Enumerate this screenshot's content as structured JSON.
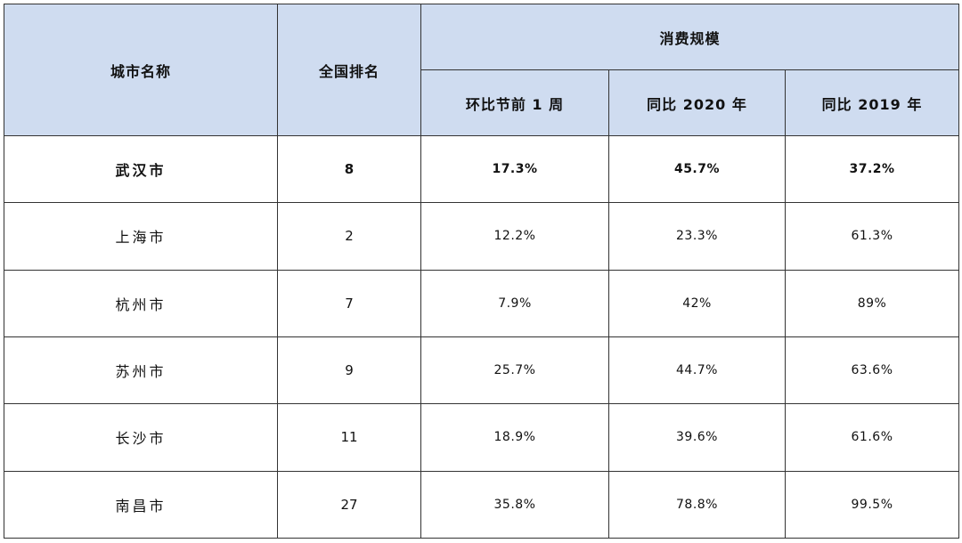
{
  "table": {
    "headers": {
      "city": "城市名称",
      "rank": "全国排名",
      "group": "消费规模",
      "wow": "环比节前 1 周",
      "yoy2020": "同比 2020 年",
      "yoy2019": "同比 2019 年"
    },
    "rows": [
      {
        "city": "武汉市",
        "rank": "8",
        "wow": "17.3%",
        "yoy2020": "45.7%",
        "yoy2019": "37.2%",
        "bold": true
      },
      {
        "city": "上海市",
        "rank": "2",
        "wow": "12.2%",
        "yoy2020": "23.3%",
        "yoy2019": "61.3%"
      },
      {
        "city": "杭州市",
        "rank": "7",
        "wow": "7.9%",
        "yoy2020": "42%",
        "yoy2019": "89%"
      },
      {
        "city": "苏州市",
        "rank": "9",
        "wow": "25.7%",
        "yoy2020": "44.7%",
        "yoy2019": "63.6%"
      },
      {
        "city": "长沙市",
        "rank": "11",
        "wow": "18.9%",
        "yoy2020": "39.6%",
        "yoy2019": "61.6%"
      },
      {
        "city": "南昌市",
        "rank": "27",
        "wow": "35.8%",
        "yoy2020": "78.8%",
        "yoy2019": "99.5%"
      }
    ]
  },
  "colors": {
    "header_bg": "#cfdcf0",
    "border": "#333333"
  }
}
